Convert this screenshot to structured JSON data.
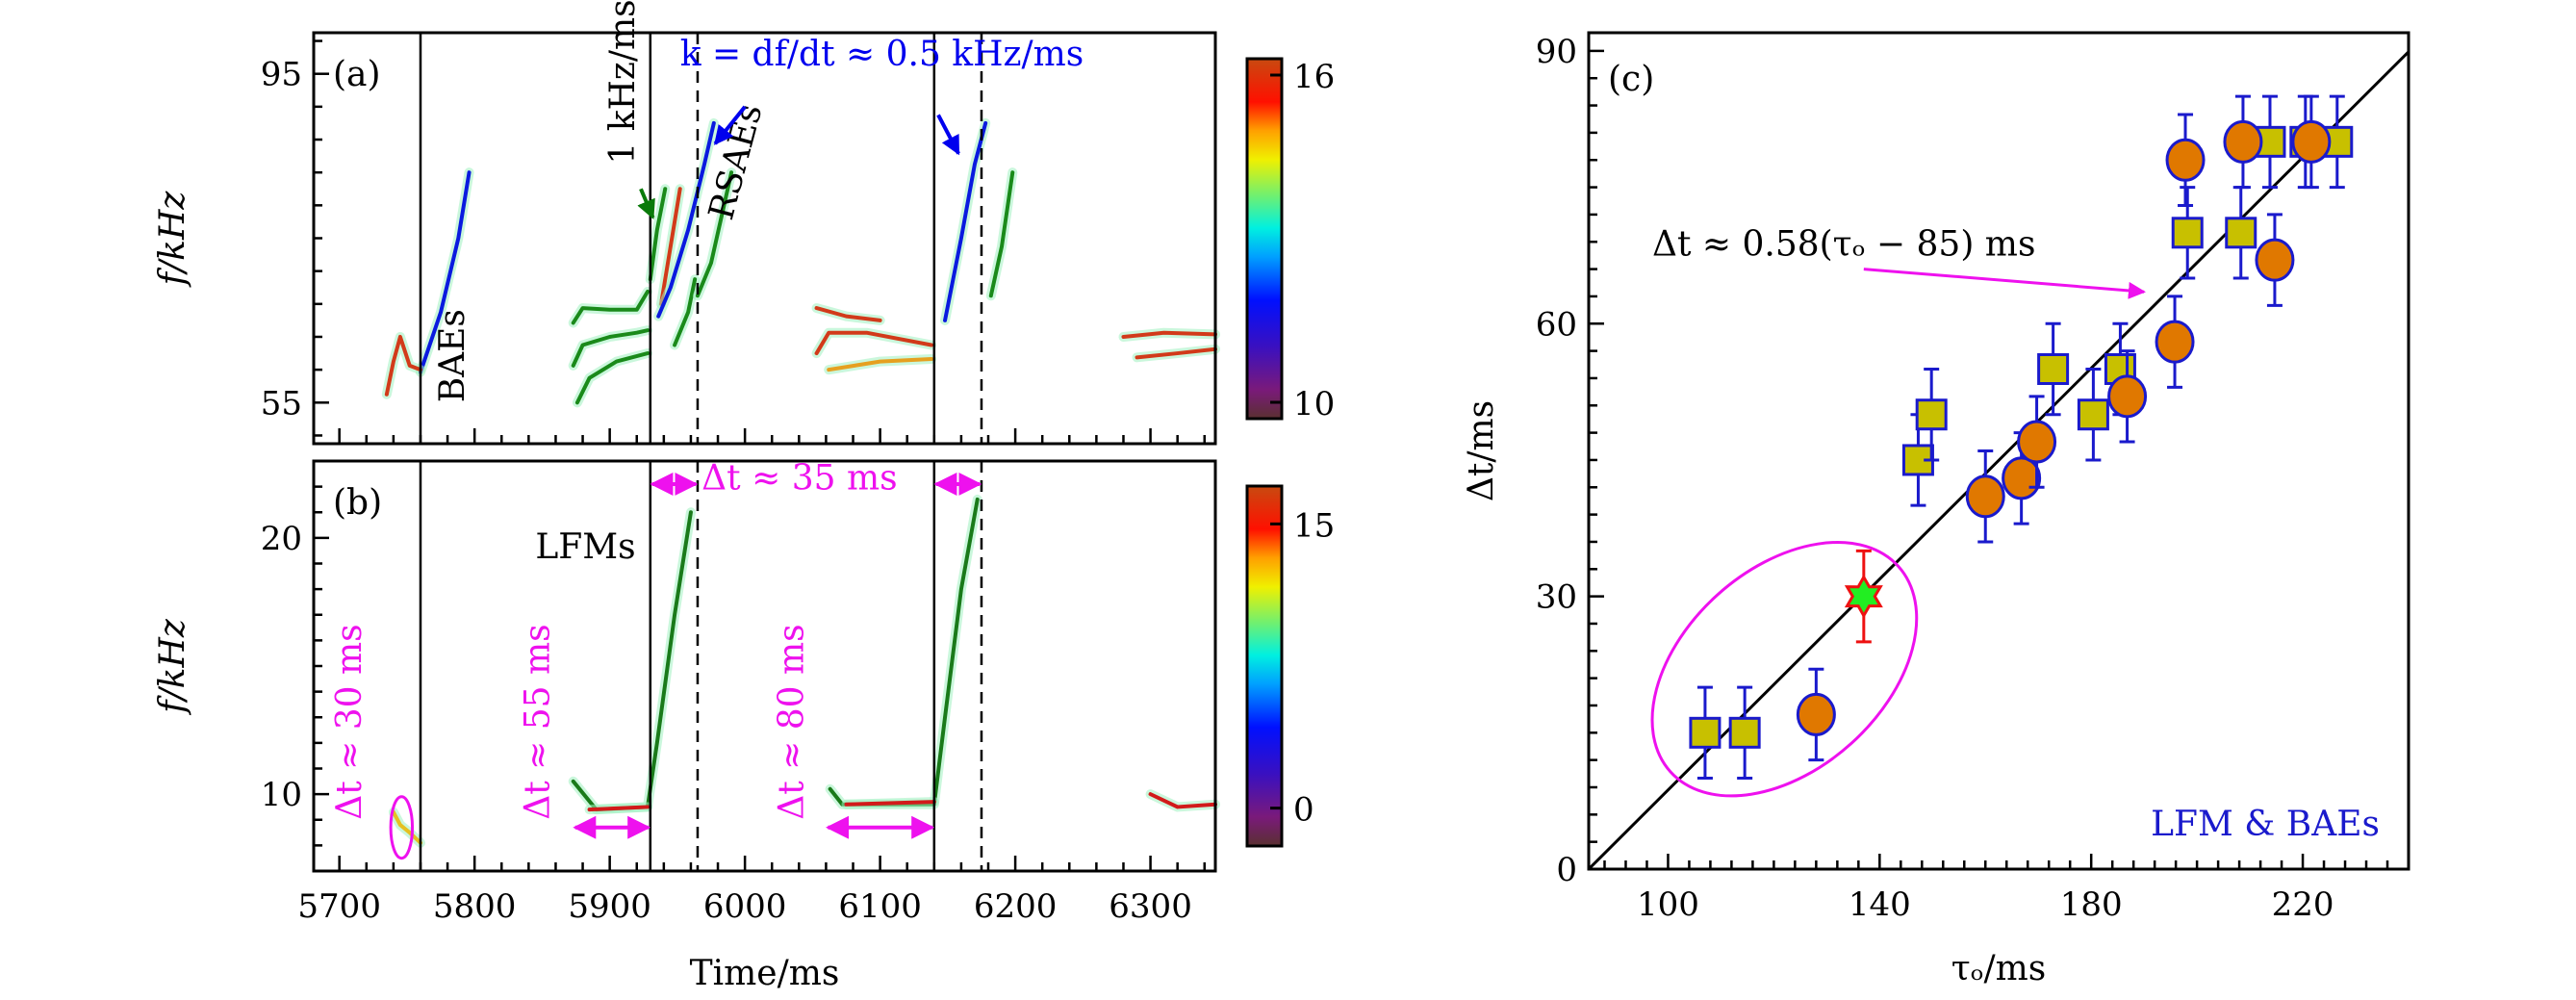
{
  "chart_data": [
    {
      "id": "a",
      "type": "heatmap",
      "panel_label": "(a)",
      "xlabel": "",
      "ylabel": "f/kHz",
      "xlim": [
        5681,
        6348
      ],
      "ylim": [
        50,
        100
      ],
      "yticks": [
        55,
        95
      ],
      "ytick_labels": [
        "55",
        "95"
      ],
      "x_major_step": 100,
      "x_minor_step": 20,
      "y_minor_step": 4,
      "vertical_lines": [
        {
          "x": 5760,
          "style": "solid"
        },
        {
          "x": 5930,
          "style": "solid"
        },
        {
          "x": 5965,
          "style": "dashed"
        },
        {
          "x": 6140,
          "style": "solid"
        },
        {
          "x": 6175,
          "style": "dashed"
        }
      ],
      "colorbar": {
        "range": [
          9.7,
          16.3
        ],
        "ticks": [
          10,
          16
        ],
        "tick_labels": [
          "10",
          "16"
        ]
      },
      "annotations": [
        {
          "text": "BAEs",
          "x": 5792,
          "y": 55,
          "rotate": -90,
          "color": "#000000"
        },
        {
          "text": "1 kHz/ms",
          "x": 5918,
          "y": 84,
          "rotate": -90,
          "color": "#000000"
        },
        {
          "text": "RSAEs",
          "x": 5990,
          "y": 77,
          "rotate": -75,
          "color": "#000000"
        },
        {
          "text": "k = df/dt ≈ 0.5 kHz/ms",
          "x": 5952,
          "y": 96,
          "rotate": 0,
          "color": "#0000ee"
        }
      ],
      "arrows": [
        {
          "from": [
            6000,
            91
          ],
          "to": [
            5978,
            86.5
          ],
          "color": "#0000ee"
        },
        {
          "from": [
            6143,
            90
          ],
          "to": [
            6158,
            85.3
          ],
          "color": "#0000ee"
        },
        {
          "from": [
            5923,
            81
          ],
          "to": [
            5932,
            77.5
          ],
          "color": "#0a7a0a"
        }
      ],
      "traces": [
        {
          "name": "BAE-chirp-1",
          "color": "#0a1adf",
          "points": [
            [
              5760,
              58.7
            ],
            [
              5775,
              66
            ],
            [
              5788,
              75
            ],
            [
              5796,
              83
            ]
          ]
        },
        {
          "name": "BAE-band-1",
          "color": "#1a8a1a",
          "points": [
            [
              5873,
              64.7
            ],
            [
              5880,
              66.5
            ],
            [
              5900,
              66.3
            ],
            [
              5920,
              66.3
            ],
            [
              5928,
              68.5
            ]
          ]
        },
        {
          "name": "BAE-band-2",
          "color": "#1a8a1a",
          "points": [
            [
              5873,
              59.5
            ],
            [
              5880,
              62
            ],
            [
              5900,
              63
            ],
            [
              5920,
              63.5
            ],
            [
              5928,
              63.8
            ]
          ]
        },
        {
          "name": "BAE-band-3",
          "color": "#1a8a1a",
          "points": [
            [
              5876,
              55
            ],
            [
              5885,
              58
            ],
            [
              5905,
              60
            ],
            [
              5928,
              61
            ]
          ]
        },
        {
          "name": "RSAE-green-1",
          "color": "#1a8a1a",
          "points": [
            [
              5930,
              70
            ],
            [
              5935,
              76
            ],
            [
              5941,
              81
            ]
          ]
        },
        {
          "name": "RSAE-red-1",
          "color": "#d23a1a",
          "points": [
            [
              5938,
              67
            ],
            [
              5945,
              74
            ],
            [
              5952,
              81
            ]
          ]
        },
        {
          "name": "RSAE-blue-1",
          "color": "#0a1adf",
          "points": [
            [
              5936,
              65.5
            ],
            [
              5945,
              69
            ],
            [
              5958,
              76
            ],
            [
              5970,
              84
            ],
            [
              5977,
              89
            ]
          ]
        },
        {
          "name": "RSAE-green-2",
          "color": "#1a8a1a",
          "points": [
            [
              5948,
              62
            ],
            [
              5958,
              66
            ],
            [
              5963,
              70
            ]
          ]
        },
        {
          "name": "RSAE-green-3",
          "color": "#1a8a1a",
          "points": [
            [
              5965,
              68
            ],
            [
              5975,
              72
            ],
            [
              5990,
              83
            ]
          ]
        },
        {
          "name": "RSAE-blue-2",
          "color": "#0a1adf",
          "points": [
            [
              6148,
              65
            ],
            [
              6160,
              75
            ],
            [
              6170,
              84
            ],
            [
              6178,
              89
            ]
          ]
        },
        {
          "name": "RSAE-green-4",
          "color": "#1a8a1a",
          "points": [
            [
              6182,
              68
            ],
            [
              6190,
              74
            ],
            [
              6198,
              83
            ]
          ]
        },
        {
          "name": "BAE-band-4",
          "color": "#d23a1a",
          "points": [
            [
              6053,
              66.5
            ],
            [
              6075,
              65.5
            ],
            [
              6100,
              65
            ]
          ]
        },
        {
          "name": "BAE-band-5",
          "color": "#d23a1a",
          "points": [
            [
              6053,
              61
            ],
            [
              6062,
              63.5
            ],
            [
              6090,
              63.5
            ],
            [
              6138,
              62
            ]
          ]
        },
        {
          "name": "BAE-band-6",
          "color": "#e6a020",
          "points": [
            [
              6062,
              59
            ],
            [
              6100,
              60
            ],
            [
              6138,
              60.3
            ]
          ]
        },
        {
          "name": "BAE-band-7",
          "color": "#d23a1a",
          "points": [
            [
              6280,
              63
            ],
            [
              6310,
              63.5
            ],
            [
              6348,
              63.3
            ]
          ]
        },
        {
          "name": "BAE-band-8",
          "color": "#d23a1a",
          "points": [
            [
              6290,
              60.5
            ],
            [
              6320,
              61
            ],
            [
              6348,
              61.5
            ]
          ]
        },
        {
          "name": "BAE-scatter-left",
          "color": "#d23a1a",
          "points": [
            [
              5735,
              56
            ],
            [
              5740,
              60
            ],
            [
              5745,
              63
            ],
            [
              5752,
              59.5
            ],
            [
              5760,
              59
            ]
          ]
        }
      ]
    },
    {
      "id": "b",
      "type": "heatmap",
      "panel_label": "(b)",
      "xlabel": "Time/ms",
      "ylabel": "f/kHz",
      "xlim": [
        5681,
        6348
      ],
      "ylim": [
        7,
        23
      ],
      "xticks": [
        5700,
        5800,
        5900,
        6000,
        6100,
        6200,
        6300
      ],
      "xtick_labels": [
        "5700",
        "5800",
        "5900",
        "6000",
        "6100",
        "6200",
        "6300"
      ],
      "yticks": [
        10,
        20
      ],
      "ytick_labels": [
        "10",
        "20"
      ],
      "x_minor_step": 20,
      "y_minor_step": 1,
      "vertical_lines": [
        {
          "x": 5760,
          "style": "solid"
        },
        {
          "x": 5930,
          "style": "solid"
        },
        {
          "x": 5965,
          "style": "dashed"
        },
        {
          "x": 6140,
          "style": "solid"
        },
        {
          "x": 6175,
          "style": "dashed"
        }
      ],
      "colorbar": {
        "range": [
          -2,
          17
        ],
        "ticks": [
          0,
          15
        ],
        "tick_labels": [
          "0",
          "15"
        ]
      },
      "annotations": [
        {
          "text": "LFMs",
          "x": 5845,
          "y": 19.2,
          "rotate": 0,
          "color": "#000000"
        },
        {
          "text": "Δt ≈ 35 ms",
          "x": 5968,
          "y": 21.9,
          "rotate": 0,
          "color": "#ee11ee"
        },
        {
          "text": "Δt ≈ 30 ms",
          "x": 5716,
          "y": 9.0,
          "rotate": -90,
          "color": "#ee11ee"
        },
        {
          "text": "Δt ≈ 55 ms",
          "x": 5855,
          "y": 9.0,
          "rotate": -90,
          "color": "#ee11ee"
        },
        {
          "text": "Δt ≈ 80 ms",
          "x": 6043,
          "y": 9.0,
          "rotate": -90,
          "color": "#ee11ee"
        }
      ],
      "double_arrows": [
        {
          "x1": 5930,
          "x2": 5965,
          "y": 22.1
        },
        {
          "x1": 6140,
          "x2": 6175,
          "y": 22.1
        },
        {
          "x1": 5873,
          "x2": 5930,
          "y": 8.7
        },
        {
          "x1": 6060,
          "x2": 6140,
          "y": 8.7
        }
      ],
      "ellipse": {
        "cx": 5746,
        "cy": 8.7,
        "rx": 8,
        "ry": 1.2,
        "color": "#ee11ee"
      },
      "traces": [
        {
          "name": "LFM-1",
          "color": "#1a7a1a",
          "points": [
            [
              5873,
              10.5
            ],
            [
              5890,
              9.4
            ],
            [
              5928,
              9.5
            ],
            [
              5935,
              12
            ],
            [
              5948,
              17
            ],
            [
              5960,
              21
            ]
          ]
        },
        {
          "name": "LFM-1-core",
          "color": "#d21a1a",
          "points": [
            [
              5885,
              9.4
            ],
            [
              5928,
              9.5
            ]
          ]
        },
        {
          "name": "LFM-2",
          "color": "#1a7a1a",
          "points": [
            [
              6063,
              10.2
            ],
            [
              6072,
              9.6
            ],
            [
              6140,
              9.6
            ],
            [
              6148,
              13
            ],
            [
              6160,
              18
            ],
            [
              6172,
              21.5
            ]
          ]
        },
        {
          "name": "LFM-2-core",
          "color": "#d21a1a",
          "points": [
            [
              6075,
              9.6
            ],
            [
              6140,
              9.7
            ]
          ]
        },
        {
          "name": "LFM-3",
          "color": "#d21a1a",
          "points": [
            [
              6300,
              10
            ],
            [
              6320,
              9.5
            ],
            [
              6348,
              9.6
            ]
          ]
        },
        {
          "name": "LFM-0",
          "color": "#e6c020",
          "points": [
            [
              5740,
              9.3
            ],
            [
              5745,
              8.8
            ],
            [
              5752,
              8.5
            ],
            [
              5760,
              8.1
            ]
          ]
        }
      ]
    },
    {
      "id": "c",
      "type": "scatter",
      "panel_label": "(c)",
      "xlabel": "τ_O/ms",
      "ylabel": "Δt/ms",
      "xlim": [
        85,
        240
      ],
      "ylim": [
        0,
        92
      ],
      "xticks": [
        100,
        140,
        180,
        220
      ],
      "xtick_labels": [
        "100",
        "140",
        "180",
        "220"
      ],
      "yticks": [
        0,
        30,
        60,
        90
      ],
      "ytick_labels": [
        "0",
        "30",
        "60",
        "90"
      ],
      "x_minor_step": 4,
      "y_minor_step": 3,
      "legend_text": "LFM & BAEs",
      "legend_color": "#1a1acc",
      "fit": {
        "label": "Δt ≈ 0.58(τ_O − 85) ms",
        "slope": 0.58,
        "x0": 85,
        "color": "#000000"
      },
      "fit_arrow": {
        "from": [
          137,
          66
        ],
        "to": [
          190,
          63.5
        ],
        "color": "#ee11ee"
      },
      "ellipse": {
        "cx": 122,
        "cy": 22,
        "rx": 29,
        "ry": 11,
        "angle_deg": -42,
        "color": "#ee11ee"
      },
      "series": [
        {
          "name": "squares",
          "marker": "square",
          "fill": "#c8c000",
          "edge": "#1a1acc",
          "points": [
            {
              "x": 107,
              "y": 15,
              "err": 5
            },
            {
              "x": 114.5,
              "y": 15,
              "err": 5
            },
            {
              "x": 147.3,
              "y": 45,
              "err": 5
            },
            {
              "x": 149.8,
              "y": 50,
              "err": 5
            },
            {
              "x": 172.8,
              "y": 55,
              "err": 5
            },
            {
              "x": 180.4,
              "y": 50,
              "err": 5
            },
            {
              "x": 185.5,
              "y": 55,
              "err": 5
            },
            {
              "x": 198.2,
              "y": 70,
              "err": 5
            },
            {
              "x": 208.3,
              "y": 70,
              "err": 5
            },
            {
              "x": 213.8,
              "y": 80,
              "err": 5
            },
            {
              "x": 220.5,
              "y": 80,
              "err": 5
            },
            {
              "x": 226.5,
              "y": 80,
              "err": 5
            }
          ]
        },
        {
          "name": "circles",
          "marker": "circle",
          "fill": "#e07800",
          "edge": "#1a1acc",
          "points": [
            {
              "x": 128,
              "y": 17,
              "err": 5
            },
            {
              "x": 160,
              "y": 41,
              "err": 5
            },
            {
              "x": 166.8,
              "y": 43,
              "err": 5
            },
            {
              "x": 169.7,
              "y": 47,
              "err": 5
            },
            {
              "x": 186.8,
              "y": 52,
              "err": 5
            },
            {
              "x": 195.8,
              "y": 58,
              "err": 5
            },
            {
              "x": 197.8,
              "y": 78,
              "err": 5
            },
            {
              "x": 208.7,
              "y": 80,
              "err": 5
            },
            {
              "x": 214.7,
              "y": 67,
              "err": 5
            },
            {
              "x": 221.6,
              "y": 80,
              "err": 5
            }
          ]
        },
        {
          "name": "star",
          "marker": "star6",
          "fill": "#22ee22",
          "edge": "#ee1111",
          "points": [
            {
              "x": 137,
              "y": 30,
              "err": 5
            }
          ]
        }
      ]
    }
  ]
}
